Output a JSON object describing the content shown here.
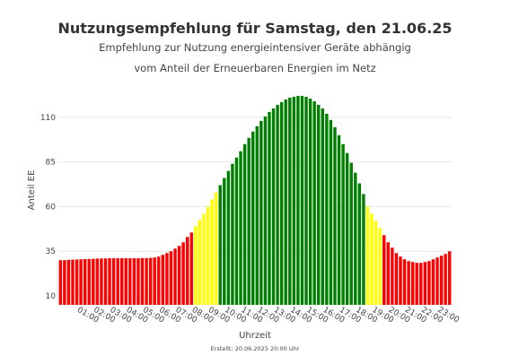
{
  "chart_data": {
    "type": "bar",
    "title": "Nutzungsempfehlung für Samstag, den 21.06.25",
    "subtitle_lines": [
      "Empfehlung zur Nutzung energieintensiver Geräte abhängig",
      "vom Anteil der Erneuerbaren Energien im Netz"
    ],
    "xlabel": "Uhrzeit",
    "ylabel": "Anteil EE",
    "ylim": [
      5,
      128
    ],
    "yticks": [
      10,
      35,
      60,
      85,
      110
    ],
    "xtick_labels": [
      "01:00",
      "02:00",
      "03:00",
      "04:00",
      "05:00",
      "06:00",
      "07:00",
      "08:00",
      "09:00",
      "10:00",
      "11:00",
      "12:00",
      "13:00",
      "14:00",
      "15:00",
      "16:00",
      "17:00",
      "18:00",
      "19:00",
      "20:00",
      "21:00",
      "22:00",
      "23:00"
    ],
    "grid": true,
    "colors": {
      "red": "#ff0000",
      "yellow": "#ffff00",
      "green": "#008000"
    },
    "interval_minutes": 15,
    "values": [
      30,
      30,
      30.2,
      30.3,
      30.4,
      30.5,
      30.6,
      30.7,
      30.8,
      30.9,
      31,
      31,
      31.1,
      31.1,
      31.1,
      31.1,
      31.1,
      31.1,
      31.1,
      31.1,
      31.2,
      31.2,
      31.3,
      31.5,
      32,
      33,
      34,
      35,
      36.5,
      38,
      40,
      43,
      45.5,
      49,
      52.5,
      56,
      60,
      64,
      68,
      72,
      76,
      80,
      84,
      87.5,
      91,
      95,
      98.5,
      102,
      105,
      108,
      110.5,
      113,
      115,
      117,
      118.5,
      120,
      121,
      121.5,
      122,
      122,
      121.5,
      120.5,
      119,
      117,
      115,
      112,
      108.5,
      104.5,
      100,
      95,
      90,
      84.5,
      79,
      73,
      67,
      60,
      56,
      52,
      48,
      44,
      40,
      37,
      34,
      32,
      30.5,
      29.5,
      29,
      28.5,
      28.5,
      29,
      29.5,
      30.5,
      31.5,
      32.5,
      33.5,
      35
    ],
    "colors_per_bar": [
      "red",
      "red",
      "red",
      "red",
      "red",
      "red",
      "red",
      "red",
      "red",
      "red",
      "red",
      "red",
      "red",
      "red",
      "red",
      "red",
      "red",
      "red",
      "red",
      "red",
      "red",
      "red",
      "red",
      "red",
      "red",
      "red",
      "red",
      "red",
      "red",
      "red",
      "red",
      "red",
      "red",
      "yellow",
      "yellow",
      "yellow",
      "yellow",
      "yellow",
      "yellow",
      "green",
      "green",
      "green",
      "green",
      "green",
      "green",
      "green",
      "green",
      "green",
      "green",
      "green",
      "green",
      "green",
      "green",
      "green",
      "green",
      "green",
      "green",
      "green",
      "green",
      "green",
      "green",
      "green",
      "green",
      "green",
      "green",
      "green",
      "green",
      "green",
      "green",
      "green",
      "green",
      "green",
      "green",
      "green",
      "green",
      "yellow",
      "yellow",
      "yellow",
      "yellow",
      "red",
      "red",
      "red",
      "red",
      "red",
      "red",
      "red",
      "red",
      "red",
      "red",
      "red",
      "red",
      "red",
      "red",
      "red",
      "red",
      "red"
    ]
  },
  "footer": "Erstellt: 20.06.2025 20:00 Uhr"
}
